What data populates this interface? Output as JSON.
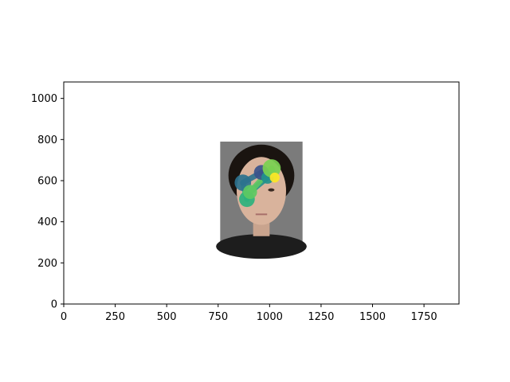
{
  "chart_data": {
    "type": "scatter",
    "title": "",
    "xlabel": "",
    "ylabel": "",
    "xlim": [
      0,
      1920
    ],
    "ylim": [
      0,
      1080
    ],
    "x_ticks": [
      0,
      250,
      500,
      750,
      1000,
      1250,
      1500,
      1750
    ],
    "y_ticks": [
      0,
      200,
      400,
      600,
      800,
      1000
    ],
    "grid": false,
    "legend": "none",
    "background_image": {
      "description": "face photograph",
      "extent": [
        760,
        1160,
        290,
        790
      ]
    },
    "scanpath": {
      "colormap": "viridis",
      "points": [
        {
          "x": 890,
          "y": 510,
          "r": 38,
          "color": "#2db27d"
        },
        {
          "x": 870,
          "y": 590,
          "r": 40,
          "color": "#2c728e"
        },
        {
          "x": 960,
          "y": 640,
          "r": 36,
          "color": "#3b528b"
        },
        {
          "x": 990,
          "y": 615,
          "r": 30,
          "color": "#21918c"
        },
        {
          "x": 905,
          "y": 545,
          "r": 34,
          "color": "#5ec962"
        },
        {
          "x": 1010,
          "y": 660,
          "r": 44,
          "color": "#7ad151"
        },
        {
          "x": 1025,
          "y": 615,
          "r": 24,
          "color": "#fde725"
        }
      ]
    },
    "colors": {
      "photo_bg": "#7b7b7b",
      "axis": "#000000"
    }
  }
}
